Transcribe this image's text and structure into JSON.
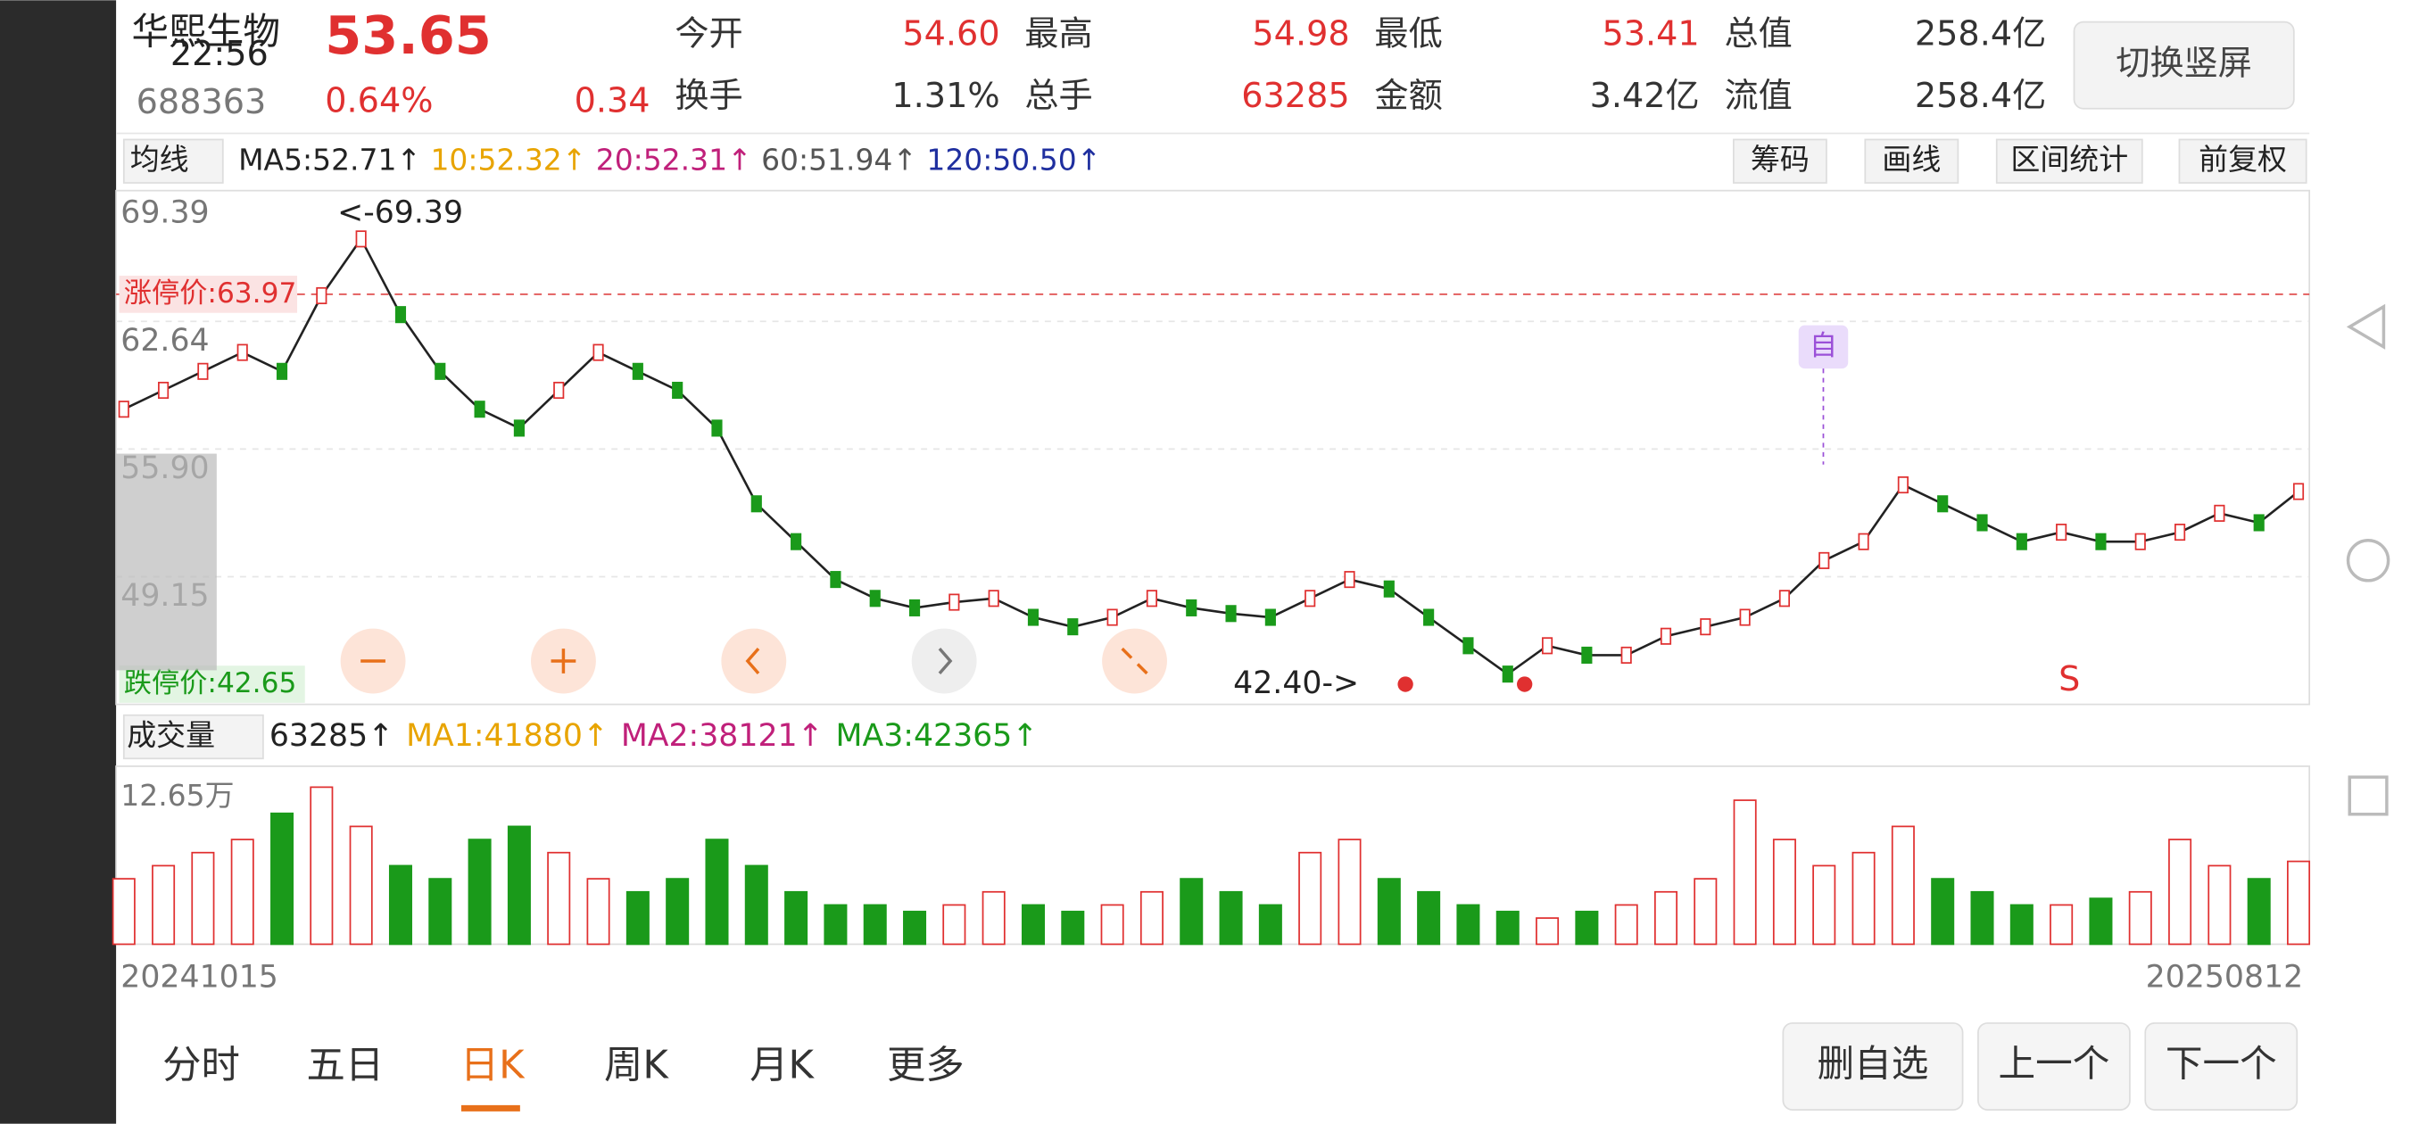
{
  "header": {
    "name": "华熙生物",
    "price": "53.65",
    "time": "22:56",
    "code": "688363",
    "change_pct": "0.64%",
    "change": "0.34",
    "stats": [
      [
        "今开",
        "54.60"
      ],
      [
        "最高",
        "54.98"
      ],
      [
        "最低",
        "53.41"
      ],
      [
        "总值",
        "258.4亿"
      ],
      [
        "换手",
        "1.31%"
      ],
      [
        "总手",
        "63285"
      ],
      [
        "金额",
        "3.42亿"
      ],
      [
        "流值",
        "258.4亿"
      ]
    ],
    "button": "切换竖屏"
  },
  "ma_bar": {
    "selector": "均线",
    "items": [
      {
        "text": "MA5:52.71↑",
        "color": "#222222"
      },
      {
        "text": "10:52.32↑",
        "color": "#e8a400"
      },
      {
        "text": "20:52.31↑",
        "color": "#c0207a"
      },
      {
        "text": "60:51.94↑",
        "color": "#555555"
      },
      {
        "text": "120:50.50↑",
        "color": "#1f2f9f"
      }
    ],
    "tools": [
      "筹码",
      "画线",
      "区间统计",
      "前复权"
    ]
  },
  "price_chart": {
    "ylim": [
      42.4,
      69.39
    ],
    "yticks": [
      "69.39",
      "62.64",
      "55.90",
      "49.15",
      "42.40"
    ],
    "max_label": "<-69.39",
    "min_label": "42.40->",
    "limit_up": "涨停价:63.97",
    "limit_down": "跌停价:42.65",
    "marker": "自",
    "signal": "S",
    "closes": [
      58,
      59,
      60,
      61,
      60,
      64,
      67,
      63,
      60,
      58,
      57,
      59,
      61,
      60,
      59,
      57,
      53,
      51,
      49,
      48,
      47.5,
      47.8,
      48,
      47,
      46.5,
      47,
      48,
      47.5,
      47.2,
      47,
      48,
      49,
      48.5,
      47,
      45.5,
      44,
      45.5,
      45,
      45,
      46,
      46.5,
      47,
      48,
      50,
      51,
      54,
      53,
      52,
      51,
      51.5,
      51,
      51,
      51.5,
      52.5,
      52,
      53.65
    ]
  },
  "volume_chart": {
    "selector": "成交量",
    "items": [
      {
        "text": "63285↑",
        "color": "#222222"
      },
      {
        "text": "MA1:41880↑",
        "color": "#e8a400"
      },
      {
        "text": "MA2:38121↑",
        "color": "#c0207a"
      },
      {
        "text": "MA3:42365↑",
        "color": "#1a9a1a"
      }
    ],
    "ytick": "12.65万",
    "ylim": [
      0,
      12.65
    ],
    "values": [
      5,
      6,
      7,
      8,
      10,
      12,
      9,
      6,
      5,
      8,
      9,
      7,
      5,
      4,
      5,
      8,
      6,
      4,
      3,
      3,
      2.5,
      3,
      4,
      3,
      2.5,
      3,
      4,
      5,
      4,
      3,
      7,
      8,
      5,
      4,
      3,
      2.5,
      2,
      2.5,
      3,
      4,
      5,
      11,
      8,
      6,
      7,
      9,
      5,
      4,
      3,
      3,
      3.5,
      4,
      8,
      6,
      5,
      6.33
    ],
    "start_date": "20241015",
    "end_date": "20250812"
  },
  "tabs": {
    "items": [
      "分时",
      "五日",
      "日K",
      "周K",
      "月K",
      "更多"
    ],
    "active": 2
  },
  "actions": [
    "删自选",
    "上一个",
    "下一个"
  ]
}
